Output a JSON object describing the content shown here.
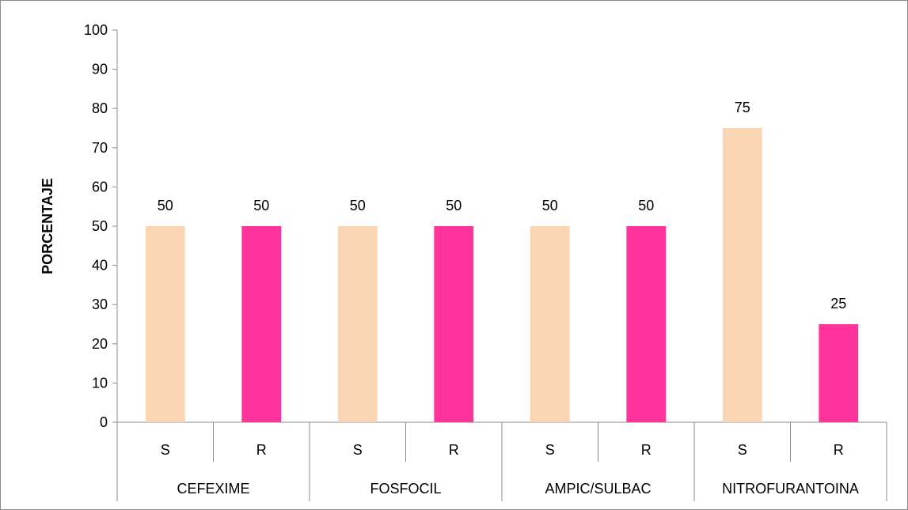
{
  "chart_data": {
    "type": "bar",
    "ylabel": "PORCENTAJE",
    "ylim": [
      0,
      100
    ],
    "yticks": [
      "0",
      "10",
      "20",
      "30",
      "40",
      "50",
      "60",
      "70",
      "80",
      "90",
      "100"
    ],
    "groups": [
      {
        "name": "CEFEXIME",
        "bars": [
          {
            "label": "S",
            "value": 50
          },
          {
            "label": "R",
            "value": 50
          }
        ]
      },
      {
        "name": "FOSFOCIL",
        "bars": [
          {
            "label": "S",
            "value": 50
          },
          {
            "label": "R",
            "value": 50
          }
        ]
      },
      {
        "name": "AMPIC/SULBAC",
        "bars": [
          {
            "label": "S",
            "value": 50
          },
          {
            "label": "R",
            "value": 50
          }
        ]
      },
      {
        "name": "NITROFURANTOINA",
        "bars": [
          {
            "label": "S",
            "value": 75
          },
          {
            "label": "R",
            "value": 25
          }
        ]
      }
    ],
    "colors": {
      "S": "#FAD5B4",
      "R": "#FF3399"
    },
    "grid": false,
    "legend": "none",
    "data_labels": true
  }
}
